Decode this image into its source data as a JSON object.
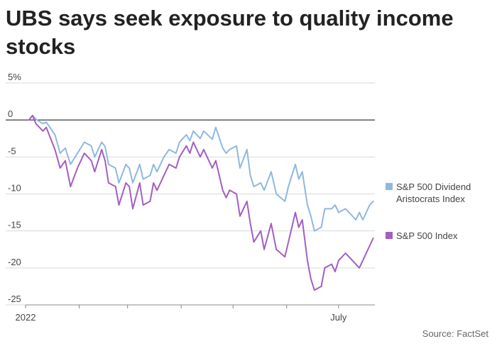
{
  "title": "UBS says seek exposure to quality income stocks",
  "source": "Source: FactSet",
  "colors": {
    "dividend": "#8fb8e0",
    "sp500": "#a35ec2",
    "grid": "#d9d9d9",
    "zero_line": "#222222"
  },
  "chart_data": {
    "type": "line",
    "title": "UBS says seek exposure to quality income stocks",
    "xlabel": "",
    "ylabel": "",
    "ylim": [
      -25,
      5
    ],
    "xlim": [
      "2022-01-01",
      "2022-07-22"
    ],
    "yticks": [
      5,
      0,
      -5,
      -10,
      -15,
      -20,
      -25
    ],
    "ytick_labels": [
      "5%",
      "0",
      "-5",
      "-10",
      "-15",
      "-20",
      "-25"
    ],
    "xtick_labels": [
      {
        "date": "2022-01-01",
        "label": "2022"
      },
      {
        "date": "2022-07-01",
        "label": "July"
      }
    ],
    "grid": "horizontal",
    "legend_position": "right",
    "series": [
      {
        "name": "S&P 500 Dividend Aristocrats Index",
        "color": "#8fb8e0",
        "data": [
          [
            "2022-01-03",
            0.0
          ],
          [
            "2022-01-05",
            0.6
          ],
          [
            "2022-01-07",
            0.1
          ],
          [
            "2022-01-11",
            -0.5
          ],
          [
            "2022-01-13",
            -0.3
          ],
          [
            "2022-01-18",
            -2.0
          ],
          [
            "2022-01-21",
            -4.5
          ],
          [
            "2022-01-24",
            -3.8
          ],
          [
            "2022-01-27",
            -6.0
          ],
          [
            "2022-01-31",
            -4.5
          ],
          [
            "2022-02-04",
            -3.0
          ],
          [
            "2022-02-08",
            -3.5
          ],
          [
            "2022-02-10",
            -5.0
          ],
          [
            "2022-02-14",
            -3.0
          ],
          [
            "2022-02-16",
            -3.6
          ],
          [
            "2022-02-18",
            -6.0
          ],
          [
            "2022-02-22",
            -6.5
          ],
          [
            "2022-02-24",
            -8.5
          ],
          [
            "2022-02-28",
            -6.0
          ],
          [
            "2022-03-02",
            -6.5
          ],
          [
            "2022-03-04",
            -8.5
          ],
          [
            "2022-03-08",
            -6.0
          ],
          [
            "2022-03-10",
            -8.0
          ],
          [
            "2022-03-14",
            -7.5
          ],
          [
            "2022-03-16",
            -6.0
          ],
          [
            "2022-03-18",
            -7.0
          ],
          [
            "2022-03-22",
            -5.0
          ],
          [
            "2022-03-25",
            -4.0
          ],
          [
            "2022-03-29",
            -4.5
          ],
          [
            "2022-03-31",
            -3.0
          ],
          [
            "2022-04-04",
            -2.0
          ],
          [
            "2022-04-06",
            -2.8
          ],
          [
            "2022-04-08",
            -1.5
          ],
          [
            "2022-04-12",
            -2.5
          ],
          [
            "2022-04-14",
            -1.5
          ],
          [
            "2022-04-19",
            -2.6
          ],
          [
            "2022-04-21",
            -1.0
          ],
          [
            "2022-04-25",
            -3.8
          ],
          [
            "2022-04-27",
            -4.5
          ],
          [
            "2022-04-29",
            -4.0
          ],
          [
            "2022-05-03",
            -3.5
          ],
          [
            "2022-05-05",
            -6.5
          ],
          [
            "2022-05-09",
            -4.0
          ],
          [
            "2022-05-11",
            -7.5
          ],
          [
            "2022-05-13",
            -9.0
          ],
          [
            "2022-05-17",
            -8.5
          ],
          [
            "2022-05-19",
            -9.5
          ],
          [
            "2022-05-23",
            -7.0
          ],
          [
            "2022-05-26",
            -10.0
          ],
          [
            "2022-05-31",
            -11.0
          ],
          [
            "2022-06-02",
            -9.0
          ],
          [
            "2022-06-06",
            -6.0
          ],
          [
            "2022-06-08",
            -8.0
          ],
          [
            "2022-06-10",
            -7.0
          ],
          [
            "2022-06-13",
            -11.5
          ],
          [
            "2022-06-15",
            -13.0
          ],
          [
            "2022-06-17",
            -15.0
          ],
          [
            "2022-06-21",
            -14.5
          ],
          [
            "2022-06-23",
            -12.0
          ],
          [
            "2022-06-27",
            -12.0
          ],
          [
            "2022-06-29",
            -11.5
          ],
          [
            "2022-07-01",
            -12.5
          ],
          [
            "2022-07-05",
            -12.0
          ],
          [
            "2022-07-07",
            -12.5
          ],
          [
            "2022-07-11",
            -13.5
          ],
          [
            "2022-07-13",
            -12.5
          ],
          [
            "2022-07-15",
            -13.5
          ],
          [
            "2022-07-19",
            -11.5
          ],
          [
            "2022-07-21",
            -11.0
          ]
        ]
      },
      {
        "name": "S&P 500 Index",
        "color": "#a35ec2",
        "data": [
          [
            "2022-01-03",
            0.0
          ],
          [
            "2022-01-05",
            0.6
          ],
          [
            "2022-01-07",
            -0.5
          ],
          [
            "2022-01-11",
            -1.5
          ],
          [
            "2022-01-13",
            -1.0
          ],
          [
            "2022-01-18",
            -4.0
          ],
          [
            "2022-01-21",
            -6.5
          ],
          [
            "2022-01-24",
            -5.5
          ],
          [
            "2022-01-27",
            -9.0
          ],
          [
            "2022-01-31",
            -6.5
          ],
          [
            "2022-02-04",
            -4.5
          ],
          [
            "2022-02-08",
            -5.5
          ],
          [
            "2022-02-10",
            -7.0
          ],
          [
            "2022-02-14",
            -4.0
          ],
          [
            "2022-02-16",
            -5.5
          ],
          [
            "2022-02-18",
            -8.5
          ],
          [
            "2022-02-22",
            -9.0
          ],
          [
            "2022-02-24",
            -11.5
          ],
          [
            "2022-02-28",
            -8.5
          ],
          [
            "2022-03-02",
            -9.0
          ],
          [
            "2022-03-04",
            -12.0
          ],
          [
            "2022-03-08",
            -8.5
          ],
          [
            "2022-03-10",
            -11.5
          ],
          [
            "2022-03-14",
            -11.0
          ],
          [
            "2022-03-16",
            -8.5
          ],
          [
            "2022-03-18",
            -9.5
          ],
          [
            "2022-03-22",
            -7.5
          ],
          [
            "2022-03-25",
            -6.0
          ],
          [
            "2022-03-29",
            -6.5
          ],
          [
            "2022-03-31",
            -5.0
          ],
          [
            "2022-04-04",
            -3.5
          ],
          [
            "2022-04-06",
            -4.5
          ],
          [
            "2022-04-08",
            -3.0
          ],
          [
            "2022-04-12",
            -5.0
          ],
          [
            "2022-04-14",
            -4.0
          ],
          [
            "2022-04-19",
            -6.5
          ],
          [
            "2022-04-21",
            -5.5
          ],
          [
            "2022-04-25",
            -9.5
          ],
          [
            "2022-04-27",
            -10.5
          ],
          [
            "2022-04-29",
            -9.5
          ],
          [
            "2022-05-03",
            -10.0
          ],
          [
            "2022-05-05",
            -13.0
          ],
          [
            "2022-05-09",
            -11.0
          ],
          [
            "2022-05-11",
            -14.0
          ],
          [
            "2022-05-13",
            -16.5
          ],
          [
            "2022-05-17",
            -15.0
          ],
          [
            "2022-05-19",
            -17.5
          ],
          [
            "2022-05-23",
            -14.0
          ],
          [
            "2022-05-26",
            -17.5
          ],
          [
            "2022-05-31",
            -18.5
          ],
          [
            "2022-06-02",
            -16.5
          ],
          [
            "2022-06-06",
            -12.5
          ],
          [
            "2022-06-08",
            -14.5
          ],
          [
            "2022-06-10",
            -13.5
          ],
          [
            "2022-06-13",
            -19.0
          ],
          [
            "2022-06-15",
            -21.5
          ],
          [
            "2022-06-17",
            -23.0
          ],
          [
            "2022-06-21",
            -22.5
          ],
          [
            "2022-06-23",
            -20.0
          ],
          [
            "2022-06-27",
            -19.5
          ],
          [
            "2022-06-29",
            -20.5
          ],
          [
            "2022-07-01",
            -19.0
          ],
          [
            "2022-07-05",
            -18.0
          ],
          [
            "2022-07-07",
            -18.5
          ],
          [
            "2022-07-11",
            -19.5
          ],
          [
            "2022-07-13",
            -20.0
          ],
          [
            "2022-07-15",
            -19.0
          ],
          [
            "2022-07-19",
            -17.0
          ],
          [
            "2022-07-21",
            -16.0
          ]
        ]
      }
    ]
  }
}
